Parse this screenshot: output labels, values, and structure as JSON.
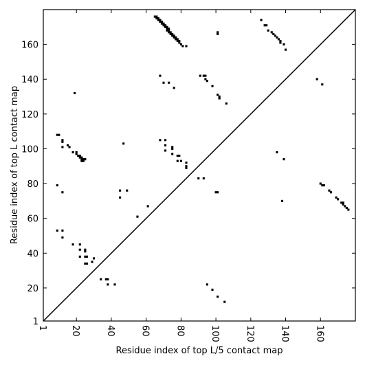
{
  "chart_data": {
    "type": "scatter",
    "xlabel": "Residue index of top L/5 contact map",
    "ylabel": "Residue index of top L contact map",
    "xlim": [
      1,
      180
    ],
    "ylim": [
      1,
      180
    ],
    "xticks": [
      1,
      20,
      40,
      60,
      80,
      100,
      120,
      140,
      160
    ],
    "yticks": [
      1,
      20,
      40,
      60,
      80,
      100,
      120,
      140,
      160
    ],
    "diagonal": true,
    "color": "#000000",
    "x": [
      65,
      66,
      66,
      67,
      67,
      68,
      68,
      69,
      69,
      70,
      70,
      71,
      71,
      72,
      72,
      72,
      73,
      73,
      73,
      74,
      74,
      75,
      75,
      76,
      76,
      77,
      77,
      78,
      78,
      79,
      79,
      80,
      81,
      83,
      101,
      101,
      126,
      128,
      129,
      130,
      132,
      133,
      134,
      135,
      136,
      137,
      137,
      139,
      140,
      68,
      70,
      73,
      76,
      91,
      93,
      94,
      94,
      95,
      98,
      101,
      102,
      102,
      106,
      19,
      158,
      161,
      9,
      10,
      12,
      12,
      12,
      15,
      16,
      18,
      20,
      20,
      21,
      22,
      22,
      23,
      23,
      24,
      24,
      25,
      23,
      47,
      68,
      71,
      71,
      71,
      75,
      75,
      75,
      78,
      79,
      78,
      80,
      83,
      83,
      83,
      90,
      93,
      100,
      101,
      135,
      139,
      9,
      12,
      45,
      49,
      45,
      61,
      55,
      138,
      9,
      12,
      12,
      18,
      22,
      22,
      25,
      25,
      22,
      25,
      26,
      25,
      26,
      29,
      30,
      34,
      37,
      38,
      38,
      42,
      95,
      98,
      101,
      105,
      160,
      161,
      162,
      165,
      166,
      169,
      170,
      172,
      173,
      173,
      174,
      175,
      176
    ],
    "values": [
      176,
      176,
      175,
      175,
      174,
      174,
      173,
      173,
      172,
      172,
      171,
      171,
      170,
      170,
      169,
      168,
      169,
      168,
      167,
      167,
      166,
      166,
      165,
      165,
      164,
      164,
      163,
      163,
      162,
      162,
      161,
      160,
      159,
      159,
      167,
      166,
      174,
      171,
      171,
      168,
      167,
      166,
      165,
      164,
      163,
      162,
      161,
      160,
      157,
      142,
      138,
      138,
      135,
      142,
      142,
      142,
      140,
      139,
      136,
      131,
      130,
      129,
      126,
      132,
      140,
      137,
      108,
      108,
      105,
      104,
      101,
      102,
      101,
      98,
      98,
      97,
      96,
      96,
      95,
      95,
      94,
      94,
      93,
      94,
      93,
      103,
      105,
      105,
      102,
      99,
      101,
      100,
      97,
      96,
      96,
      93,
      93,
      92,
      90,
      89,
      83,
      83,
      75,
      75,
      98,
      94,
      79,
      75,
      76,
      76,
      72,
      67,
      61,
      70,
      53,
      53,
      49,
      45,
      45,
      42,
      42,
      41,
      38,
      38,
      38,
      34,
      34,
      35,
      37,
      25,
      25,
      25,
      22,
      22,
      22,
      19,
      15,
      12,
      80,
      79,
      79,
      76,
      75,
      72,
      71,
      69,
      68,
      69,
      67,
      66,
      65
    ]
  }
}
